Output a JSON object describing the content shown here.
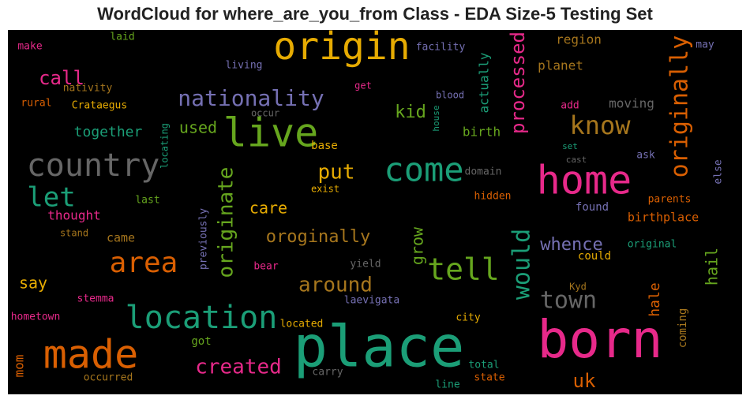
{
  "chart_data": {
    "type": "wordcloud",
    "title": "WordCloud for where_are_you_from Class - EDA Size-5 Testing Set",
    "background": "#000000",
    "words": [
      {
        "text": "origin",
        "color": "#e6ab02"
      },
      {
        "text": "place",
        "color": "#1b9e77"
      },
      {
        "text": "born",
        "color": "#e7298a"
      },
      {
        "text": "home",
        "color": "#e7298a"
      },
      {
        "text": "made",
        "color": "#d95f02"
      },
      {
        "text": "live",
        "color": "#66a61e"
      },
      {
        "text": "country",
        "color": "#666666"
      },
      {
        "text": "come",
        "color": "#1b9e77"
      },
      {
        "text": "location",
        "color": "#1b9e77"
      },
      {
        "text": "area",
        "color": "#d95f02"
      },
      {
        "text": "tell",
        "color": "#66a61e"
      },
      {
        "text": "let",
        "color": "#1b9e77"
      },
      {
        "text": "nationality",
        "color": "#7570b3"
      },
      {
        "text": "originally",
        "color": "#d95f02"
      },
      {
        "text": "know",
        "color": "#a6761d"
      },
      {
        "text": "would",
        "color": "#1b9e77"
      },
      {
        "text": "originate",
        "color": "#66a61e"
      },
      {
        "text": "town",
        "color": "#666666"
      },
      {
        "text": "around",
        "color": "#a6761d"
      },
      {
        "text": "created",
        "color": "#e7298a"
      },
      {
        "text": "processed",
        "color": "#e7298a"
      },
      {
        "text": "oroginally",
        "color": "#a6761d"
      },
      {
        "text": "put",
        "color": "#e6ab02"
      },
      {
        "text": "call",
        "color": "#e7298a"
      },
      {
        "text": "kid",
        "color": "#66a61e"
      },
      {
        "text": "used",
        "color": "#66a61e"
      },
      {
        "text": "together",
        "color": "#1b9e77"
      },
      {
        "text": "care",
        "color": "#e6ab02"
      },
      {
        "text": "say",
        "color": "#e6ab02"
      },
      {
        "text": "uk",
        "color": "#d95f02"
      },
      {
        "text": "whence",
        "color": "#7570b3"
      },
      {
        "text": "hail",
        "color": "#66a61e"
      },
      {
        "text": "hale",
        "color": "#d95f02"
      },
      {
        "text": "grow",
        "color": "#66a61e"
      },
      {
        "text": "actually",
        "color": "#1b9e77"
      },
      {
        "text": "birth",
        "color": "#66a61e"
      },
      {
        "text": "moving",
        "color": "#666666"
      },
      {
        "text": "region",
        "color": "#a6761d"
      },
      {
        "text": "planet",
        "color": "#a6761d"
      },
      {
        "text": "mom",
        "color": "#d95f02"
      },
      {
        "text": "thought",
        "color": "#e7298a"
      },
      {
        "text": "came",
        "color": "#a6761d"
      },
      {
        "text": "base",
        "color": "#e6ab02"
      },
      {
        "text": "birthplace",
        "color": "#d95f02"
      },
      {
        "text": "found",
        "color": "#7570b3"
      },
      {
        "text": "could",
        "color": "#e6ab02"
      },
      {
        "text": "coming",
        "color": "#a6761d"
      },
      {
        "text": "got",
        "color": "#66a61e"
      },
      {
        "text": "facility",
        "color": "#7570b3"
      },
      {
        "text": "living",
        "color": "#7570b3"
      },
      {
        "text": "laid",
        "color": "#66a61e"
      },
      {
        "text": "make",
        "color": "#e7298a"
      },
      {
        "text": "nativity",
        "color": "#a6761d"
      },
      {
        "text": "rural",
        "color": "#d95f02"
      },
      {
        "text": "Crataegus",
        "color": "#e6ab02"
      },
      {
        "text": "occur",
        "color": "#666666"
      },
      {
        "text": "get",
        "color": "#e7298a"
      },
      {
        "text": "blood",
        "color": "#7570b3"
      },
      {
        "text": "house",
        "color": "#1b9e77"
      },
      {
        "text": "add",
        "color": "#e7298a"
      },
      {
        "text": "set",
        "color": "#1b9e77"
      },
      {
        "text": "cast",
        "color": "#666666"
      },
      {
        "text": "ask",
        "color": "#7570b3"
      },
      {
        "text": "else",
        "color": "#7570b3"
      },
      {
        "text": "may",
        "color": "#7570b3"
      },
      {
        "text": "locating",
        "color": "#1b9e77"
      },
      {
        "text": "domain",
        "color": "#666666"
      },
      {
        "text": "exist",
        "color": "#e6ab02"
      },
      {
        "text": "hidden",
        "color": "#d95f02"
      },
      {
        "text": "last",
        "color": "#66a61e"
      },
      {
        "text": "parents",
        "color": "#d95f02"
      },
      {
        "text": "previously",
        "color": "#7570b3"
      },
      {
        "text": "stand",
        "color": "#a6761d"
      },
      {
        "text": "bear",
        "color": "#e7298a"
      },
      {
        "text": "yield",
        "color": "#666666"
      },
      {
        "text": "original",
        "color": "#1b9e77"
      },
      {
        "text": "Kyd",
        "color": "#a6761d"
      },
      {
        "text": "stemma",
        "color": "#e7298a"
      },
      {
        "text": "laevigata",
        "color": "#7570b3"
      },
      {
        "text": "hometown",
        "color": "#e7298a"
      },
      {
        "text": "located",
        "color": "#e6ab02"
      },
      {
        "text": "city",
        "color": "#e6ab02"
      },
      {
        "text": "total",
        "color": "#1b9e77"
      },
      {
        "text": "carry",
        "color": "#666666"
      },
      {
        "text": "occurred",
        "color": "#a6761d"
      },
      {
        "text": "state",
        "color": "#d95f02"
      },
      {
        "text": "line",
        "color": "#1b9e77"
      }
    ]
  }
}
